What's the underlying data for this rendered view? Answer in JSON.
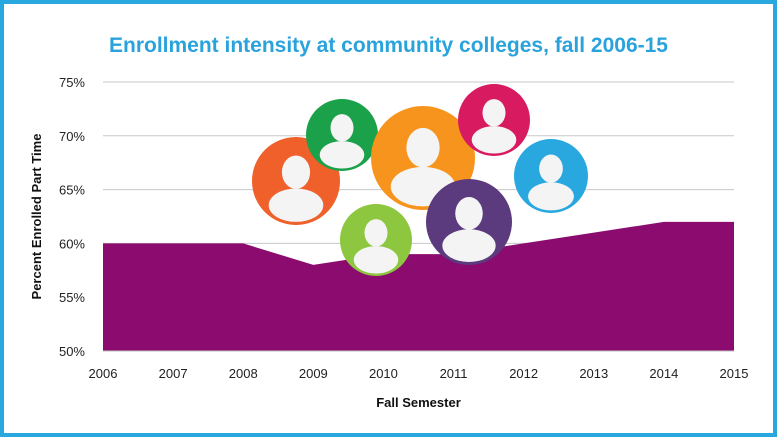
{
  "chart_data": {
    "type": "area",
    "title": "Enrollment intensity at community colleges, fall 2006-15",
    "xlabel": "Fall Semester",
    "ylabel": "Percent  Enrolled Part Time",
    "x": [
      "2006",
      "2007",
      "2008",
      "2009",
      "2010",
      "2011",
      "2012",
      "2013",
      "2014",
      "2015"
    ],
    "series": [
      {
        "values": [
          60,
          60,
          60,
          58,
          59,
          59,
          60,
          61,
          62,
          62
        ]
      }
    ],
    "ylim": [
      50,
      75
    ],
    "yticks": [
      "50%",
      "55%",
      "60%",
      "65%",
      "70%",
      "75%"
    ],
    "grid": true,
    "colors": {
      "area": "#8b0c6e",
      "title": "#2aa3dc",
      "border": "#29a8e0",
      "grid": "#c8c8c8"
    }
  },
  "decorations": [
    {
      "icon": "person-icon",
      "color": "#f0602a"
    },
    {
      "icon": "person-icon",
      "color": "#1aa14a"
    },
    {
      "icon": "person-icon",
      "color": "#f7941d"
    },
    {
      "icon": "person-icon",
      "color": "#d81b60"
    },
    {
      "icon": "person-icon",
      "color": "#29a8e0"
    },
    {
      "icon": "person-icon",
      "color": "#8dc63f"
    },
    {
      "icon": "person-icon",
      "color": "#5b3a7e"
    }
  ]
}
